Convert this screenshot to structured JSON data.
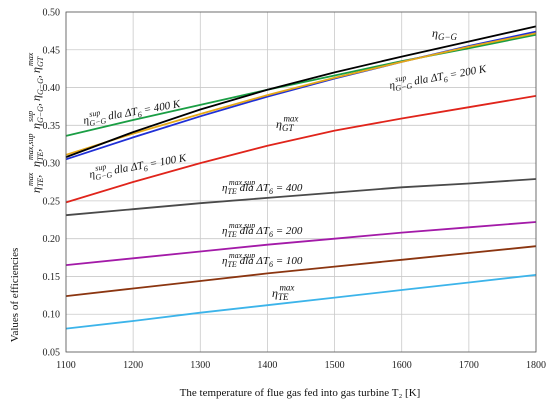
{
  "chart_data": {
    "type": "line",
    "xlabel": "The temperature of flue gas fed into gas turbine T₂ [K]",
    "ylabel_main": "Values of efficiencies",
    "x_ticks": [
      1100,
      1200,
      1300,
      1400,
      1500,
      1600,
      1700,
      1800
    ],
    "y_ticks": [
      0.05,
      0.1,
      0.15,
      0.2,
      0.25,
      0.3,
      0.35,
      0.4,
      0.45,
      0.5
    ],
    "y_tick_labels": [
      "0.05",
      "0.10",
      "0.15",
      "0.20",
      "0.25",
      "0.30",
      "0.35",
      "0.40",
      "0.45",
      "0.50"
    ],
    "x_tick_labels": [
      "1100",
      "1200",
      "1300",
      "1400",
      "1500",
      "1600",
      "1700",
      "1800"
    ],
    "xlim": [
      1100,
      1800
    ],
    "ylim": [
      0.05,
      0.5
    ],
    "grid": true,
    "x": [
      1100,
      1200,
      1300,
      1400,
      1500,
      1600,
      1700,
      1800
    ],
    "series": [
      {
        "key": "eta_gg",
        "color": "#000000",
        "values": [
          0.308,
          0.341,
          0.371,
          0.397,
          0.42,
          0.441,
          0.461,
          0.481
        ]
      },
      {
        "key": "eta_gg_sup_400",
        "color": "#1a9e44",
        "values": [
          0.336,
          0.357,
          0.377,
          0.397,
          0.416,
          0.435,
          0.452,
          0.47
        ]
      },
      {
        "key": "eta_gg_sup_200",
        "color": "#e6a817",
        "values": [
          0.311,
          0.339,
          0.365,
          0.39,
          0.413,
          0.434,
          0.454,
          0.472
        ]
      },
      {
        "key": "eta_gg_sup_100",
        "color": "#1f2fd6",
        "values": [
          0.305,
          0.334,
          0.362,
          0.388,
          0.412,
          0.434,
          0.455,
          0.474
        ]
      },
      {
        "key": "eta_gt_max",
        "color": "#e0241b",
        "values": [
          0.248,
          0.275,
          0.3,
          0.323,
          0.343,
          0.359,
          0.374,
          0.389
        ]
      },
      {
        "key": "eta_te_maxsup_400",
        "color": "#4a4a4a",
        "values": [
          0.231,
          0.239,
          0.247,
          0.254,
          0.261,
          0.268,
          0.273,
          0.279
        ]
      },
      {
        "key": "eta_te_maxsup_200",
        "color": "#a31aa8",
        "values": [
          0.165,
          0.174,
          0.183,
          0.192,
          0.2,
          0.208,
          0.215,
          0.222
        ]
      },
      {
        "key": "eta_te_maxsup_100",
        "color": "#8b3510",
        "values": [
          0.124,
          0.134,
          0.144,
          0.154,
          0.163,
          0.172,
          0.181,
          0.19
        ]
      },
      {
        "key": "eta_te_max",
        "color": "#3cb4ea",
        "values": [
          0.081,
          0.091,
          0.102,
          0.112,
          0.122,
          0.132,
          0.142,
          0.152
        ]
      }
    ],
    "annotations": {
      "eta_gg": {
        "base": "η",
        "sub": "G−G",
        "sup": "",
        "tail": ""
      },
      "eta_gg_sup_200": {
        "base": "η",
        "sub": "G−G",
        "sup": "sup",
        "tail": "dla ΔT",
        "tail_sub": "6",
        "tail_value": " = 200 K"
      },
      "eta_gg_sup_400": {
        "base": "η",
        "sub": "G−G",
        "sup": "sup",
        "tail": "dla ΔT",
        "tail_sub": "6",
        "tail_value": " = 400 K"
      },
      "eta_gg_sup_100": {
        "base": "η",
        "sub": "G−G",
        "sup": "sup",
        "tail": "dla ΔT",
        "tail_sub": "6",
        "tail_value": " = 100 K"
      },
      "eta_gt_max": {
        "base": "η",
        "sub": "GT",
        "sup": "max",
        "tail": ""
      },
      "eta_te_maxsup_400": {
        "base": "η",
        "sub": "TE",
        "sup": "max,sup",
        "tail": "dla ΔT",
        "tail_sub": "6",
        "tail_value": " = 400"
      },
      "eta_te_maxsup_200": {
        "base": "η",
        "sub": "TE",
        "sup": "max,sup",
        "tail": "dla ΔT",
        "tail_sub": "6",
        "tail_value": " = 200"
      },
      "eta_te_maxsup_100": {
        "base": "η",
        "sub": "TE",
        "sup": "max,sup",
        "tail": "dla ΔT",
        "tail_sub": "6",
        "tail_value": " = 100"
      },
      "eta_te_max": {
        "base": "η",
        "sub": "TE",
        "sup": "max",
        "tail": ""
      }
    },
    "ylabel_symbols": {
      "s1": {
        "base": "η",
        "sup": "max",
        "sub": "TE"
      },
      "s2": {
        "base": "η",
        "sup": "max,sup",
        "sub": "TE"
      },
      "s3": {
        "base": "η",
        "sup": "sup",
        "sub": "G−G"
      },
      "s4": {
        "base": "η",
        "sup": "",
        "sub": "G−G"
      },
      "s5": {
        "base": "η",
        "sup": "max",
        "sub": "GT"
      },
      "sep": ","
    }
  }
}
